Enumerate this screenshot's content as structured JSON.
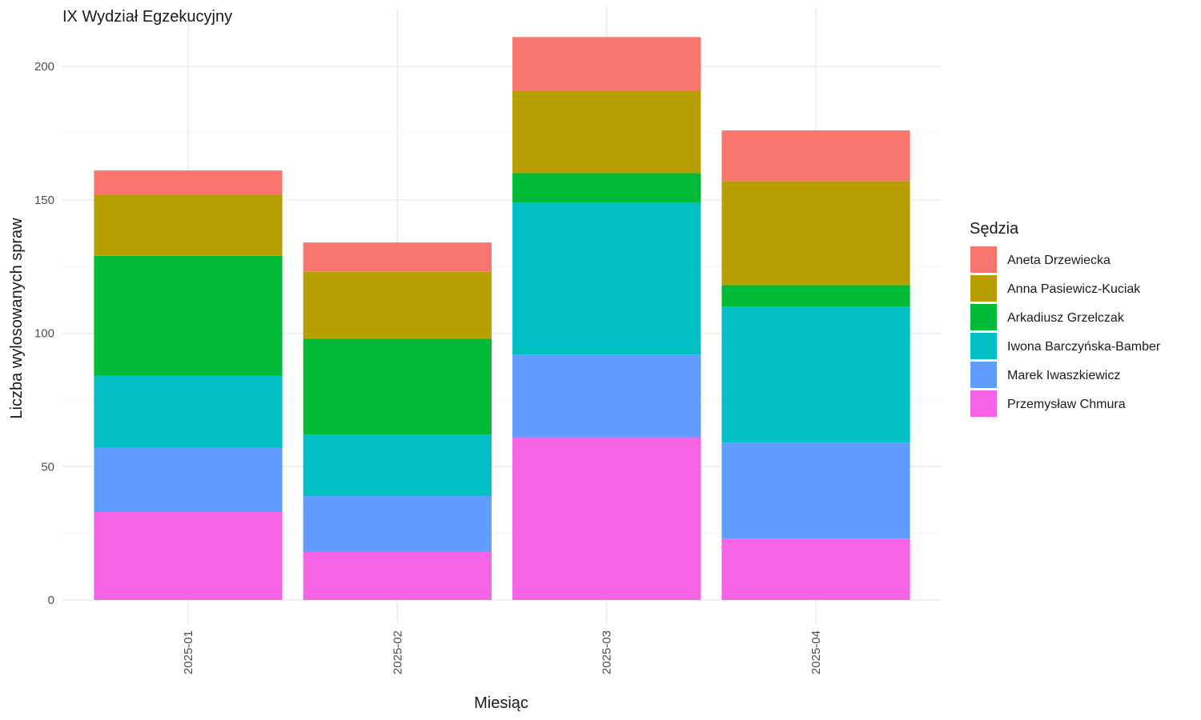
{
  "chart_data": {
    "type": "bar",
    "stacked": true,
    "title": "IX Wydział Egzekucyjny",
    "xlabel": "Miesiąc",
    "ylabel": "Liczba wylosowanych spraw",
    "categories": [
      "2025-01",
      "2025-02",
      "2025-03",
      "2025-04"
    ],
    "ylim": [
      0,
      220
    ],
    "yticks": [
      0,
      50,
      100,
      150,
      200
    ],
    "grid": true,
    "legend": {
      "title": "Sędzia",
      "position": "right"
    },
    "series": [
      {
        "name": "Przemysław Chmura",
        "color": "#F564E3",
        "values": [
          33,
          18,
          61,
          23
        ]
      },
      {
        "name": "Marek Iwaszkiewicz",
        "color": "#619CFF",
        "values": [
          24,
          21,
          31,
          36
        ]
      },
      {
        "name": "Iwona Barczyńska-Bamber",
        "color": "#00BFC4",
        "values": [
          27,
          23,
          57,
          51
        ]
      },
      {
        "name": "Arkadiusz Grzelczak",
        "color": "#00BA38",
        "values": [
          45,
          36,
          11,
          8
        ]
      },
      {
        "name": "Anna Pasiewicz-Kuciak",
        "color": "#B79F00",
        "values": [
          23,
          25,
          31,
          39
        ]
      },
      {
        "name": "Aneta Drzewiecka",
        "color": "#F8766D",
        "values": [
          9,
          11,
          20,
          19
        ]
      }
    ]
  }
}
